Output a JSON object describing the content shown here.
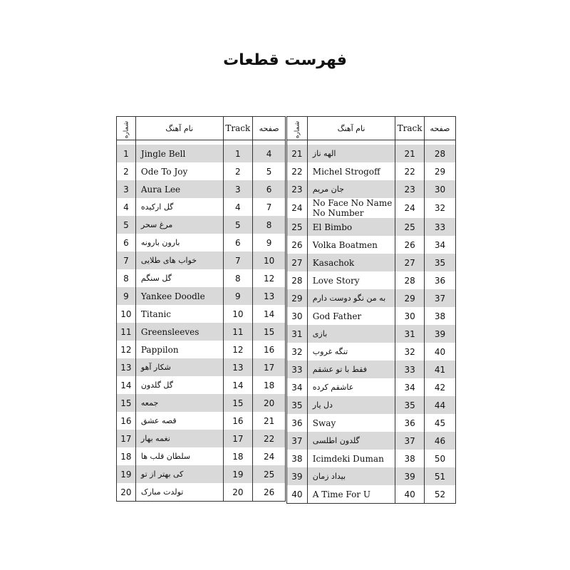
{
  "title": "فهرست قطعات",
  "headers": {
    "number": "شماره",
    "name": "نام آهنگ",
    "track": "Track",
    "page": "صفحه"
  },
  "tables": [
    {
      "rows": [
        {
          "n": "1",
          "name": "Jingle Bell",
          "track": "1",
          "page": "4"
        },
        {
          "n": "2",
          "name": "Ode To Joy",
          "track": "2",
          "page": "5"
        },
        {
          "n": "3",
          "name": "Aura Lee",
          "track": "3",
          "page": "6"
        },
        {
          "n": "4",
          "name": "گل ارکیده",
          "track": "4",
          "page": "7"
        },
        {
          "n": "5",
          "name": "مرغ سحر",
          "track": "5",
          "page": "8"
        },
        {
          "n": "6",
          "name": "بارون بارونه",
          "track": "6",
          "page": "9"
        },
        {
          "n": "7",
          "name": "خواب های طلایی",
          "track": "7",
          "page": "10"
        },
        {
          "n": "8",
          "name": "گل سنگم",
          "track": "8",
          "page": "12"
        },
        {
          "n": "9",
          "name": "Yankee Doodle",
          "track": "9",
          "page": "13"
        },
        {
          "n": "10",
          "name": "Titanic",
          "track": "10",
          "page": "14"
        },
        {
          "n": "11",
          "name": "Greensleeves",
          "track": "11",
          "page": "15"
        },
        {
          "n": "12",
          "name": "Pappilon",
          "track": "12",
          "page": "16"
        },
        {
          "n": "13",
          "name": "شکار آهو",
          "track": "13",
          "page": "17"
        },
        {
          "n": "14",
          "name": "گل گلدون",
          "track": "14",
          "page": "18"
        },
        {
          "n": "15",
          "name": "جمعه",
          "track": "15",
          "page": "20"
        },
        {
          "n": "16",
          "name": "قصه عشق",
          "track": "16",
          "page": "21"
        },
        {
          "n": "17",
          "name": "نغمه بهار",
          "track": "17",
          "page": "22"
        },
        {
          "n": "18",
          "name": "سلطان قلب ها",
          "track": "18",
          "page": "24"
        },
        {
          "n": "19",
          "name": "کی بهتر از تو",
          "track": "19",
          "page": "25"
        },
        {
          "n": "20",
          "name": "تولدت مبارک",
          "track": "20",
          "page": "26"
        }
      ]
    },
    {
      "rows": [
        {
          "n": "21",
          "name": "الهه ناز",
          "track": "21",
          "page": "28"
        },
        {
          "n": "22",
          "name": "Michel Strogoff",
          "track": "22",
          "page": "29"
        },
        {
          "n": "23",
          "name": "جان مریم",
          "track": "23",
          "page": "30"
        },
        {
          "n": "24",
          "name": "No Face No Name No Number",
          "track": "24",
          "page": "32"
        },
        {
          "n": "25",
          "name": "El Bimbo",
          "track": "25",
          "page": "33"
        },
        {
          "n": "26",
          "name": "Volka Boatmen",
          "track": "26",
          "page": "34"
        },
        {
          "n": "27",
          "name": "Kasachok",
          "track": "27",
          "page": "35"
        },
        {
          "n": "28",
          "name": "Love Story",
          "track": "28",
          "page": "36"
        },
        {
          "n": "29",
          "name": "به من نگو دوست دارم",
          "track": "29",
          "page": "37"
        },
        {
          "n": "30",
          "name": "God Father",
          "track": "30",
          "page": "38"
        },
        {
          "n": "31",
          "name": "بازی",
          "track": "31",
          "page": "39"
        },
        {
          "n": "32",
          "name": "تنگه غروب",
          "track": "32",
          "page": "40"
        },
        {
          "n": "33",
          "name": "فقط با تو عشقم",
          "track": "33",
          "page": "41"
        },
        {
          "n": "34",
          "name": "عاشقم کرده",
          "track": "34",
          "page": "42"
        },
        {
          "n": "35",
          "name": "دل یار",
          "track": "35",
          "page": "44"
        },
        {
          "n": "36",
          "name": "Sway",
          "track": "36",
          "page": "45"
        },
        {
          "n": "37",
          "name": "گلدون اطلسی",
          "track": "37",
          "page": "46"
        },
        {
          "n": "38",
          "name": "Icimdeki Duman",
          "track": "38",
          "page": "50"
        },
        {
          "n": "39",
          "name": "بیداد زمان",
          "track": "39",
          "page": "51"
        },
        {
          "n": "40",
          "name": "A Time For U",
          "track": "40",
          "page": "52"
        }
      ]
    }
  ]
}
